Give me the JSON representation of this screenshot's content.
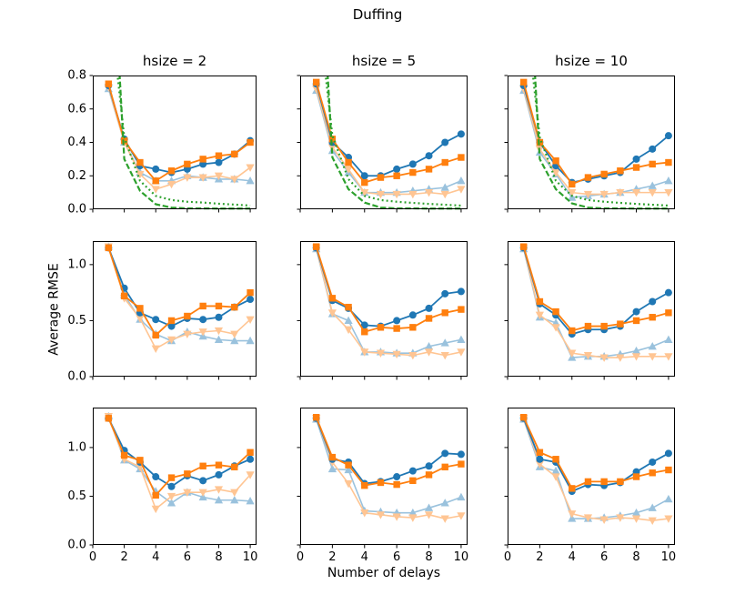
{
  "figure": {
    "title": "Duffing",
    "xlabel": "Number of delays",
    "ylabel": "Average RMSE"
  },
  "style": {
    "blue": "#1f77b4",
    "orange": "#ff7f0e",
    "light_blue": "#9ac2dd",
    "light_orange": "#ffc593",
    "green": "#2ca02c",
    "spine": "#000000"
  },
  "series_defs": [
    {
      "name": "blue-circle",
      "color": "#1f77b4",
      "marker": "circle",
      "line": "solid"
    },
    {
      "name": "orange-square",
      "color": "#ff7f0e",
      "marker": "square",
      "line": "solid"
    },
    {
      "name": "light-blue-triangle-up",
      "color": "#9ac2dd",
      "marker": "triangle-up",
      "line": "solid"
    },
    {
      "name": "light-orange-triangle-down",
      "color": "#ffc593",
      "marker": "triangle-down",
      "line": "solid"
    },
    {
      "name": "green-dashed",
      "color": "#2ca02c",
      "marker": null,
      "line": "dashed"
    },
    {
      "name": "green-dotted",
      "color": "#2ca02c",
      "marker": null,
      "line": "dotted"
    }
  ],
  "chart_data": [
    {
      "type": "line",
      "title": "hsize = 2",
      "x": [
        1,
        2,
        3,
        4,
        5,
        6,
        7,
        8,
        9,
        10
      ],
      "xlim": [
        0,
        10.4
      ],
      "ylim": [
        0,
        0.8
      ],
      "xticks": [
        0,
        2,
        4,
        6,
        8,
        10
      ],
      "xticklabels": null,
      "yticks": [
        0,
        0.2,
        0.4,
        0.6,
        0.8
      ],
      "yticklabels": [
        "0.0",
        "0.2",
        "0.4",
        "0.6",
        "0.8"
      ],
      "series": [
        {
          "def": 2,
          "values": [
            0.72,
            0.4,
            0.22,
            0.17,
            0.17,
            0.2,
            0.19,
            0.18,
            0.18,
            0.17
          ]
        },
        {
          "def": 3,
          "values": [
            0.73,
            0.4,
            0.21,
            0.12,
            0.15,
            0.19,
            0.19,
            0.2,
            0.18,
            0.25
          ]
        },
        {
          "def": 0,
          "values": [
            0.74,
            0.42,
            0.26,
            0.24,
            0.22,
            0.24,
            0.27,
            0.28,
            0.33,
            0.41
          ]
        },
        {
          "def": 1,
          "values": [
            0.75,
            0.41,
            0.28,
            0.17,
            0.23,
            0.27,
            0.3,
            0.32,
            0.33,
            0.4
          ]
        },
        {
          "def": 4,
          "values": [
            2.0,
            0.3,
            0.11,
            0.03,
            0.01,
            0.005,
            0.005,
            0.004,
            0.004,
            0.004
          ]
        },
        {
          "def": 5,
          "values": [
            1.3,
            0.43,
            0.17,
            0.08,
            0.055,
            0.045,
            0.04,
            0.033,
            0.028,
            0.022
          ]
        }
      ]
    },
    {
      "type": "line",
      "title": "hsize = 5",
      "x": [
        1,
        2,
        3,
        4,
        5,
        6,
        7,
        8,
        9,
        10
      ],
      "xlim": [
        0,
        10.4
      ],
      "ylim": [
        0,
        0.8
      ],
      "xticks": [
        0,
        2,
        4,
        6,
        8,
        10
      ],
      "xticklabels": null,
      "yticks": [
        0,
        0.2,
        0.4,
        0.6,
        0.8
      ],
      "yticklabels": null,
      "series": [
        {
          "def": 2,
          "values": [
            0.71,
            0.35,
            0.22,
            0.1,
            0.1,
            0.1,
            0.11,
            0.12,
            0.13,
            0.17
          ]
        },
        {
          "def": 3,
          "values": [
            0.72,
            0.37,
            0.24,
            0.1,
            0.09,
            0.09,
            0.09,
            0.1,
            0.09,
            0.12
          ]
        },
        {
          "def": 0,
          "values": [
            0.75,
            0.4,
            0.31,
            0.2,
            0.2,
            0.24,
            0.27,
            0.32,
            0.4,
            0.45
          ]
        },
        {
          "def": 1,
          "values": [
            0.76,
            0.42,
            0.28,
            0.16,
            0.19,
            0.2,
            0.22,
            0.24,
            0.28,
            0.31
          ]
        },
        {
          "def": 4,
          "values": [
            2.0,
            0.31,
            0.12,
            0.04,
            0.01,
            0.005,
            0.005,
            0.004,
            0.004,
            0.004
          ]
        },
        {
          "def": 5,
          "values": [
            1.3,
            0.44,
            0.18,
            0.08,
            0.055,
            0.045,
            0.038,
            0.032,
            0.027,
            0.022
          ]
        }
      ]
    },
    {
      "type": "line",
      "title": "hsize = 10",
      "x": [
        1,
        2,
        3,
        4,
        5,
        6,
        7,
        8,
        9,
        10
      ],
      "xlim": [
        0,
        10.4
      ],
      "ylim": [
        0,
        0.8
      ],
      "xticks": [
        0,
        2,
        4,
        6,
        8,
        10
      ],
      "xticklabels": null,
      "yticks": [
        0,
        0.2,
        0.4,
        0.6,
        0.8
      ],
      "yticklabels": null,
      "series": [
        {
          "def": 2,
          "values": [
            0.71,
            0.34,
            0.21,
            0.07,
            0.08,
            0.09,
            0.1,
            0.12,
            0.14,
            0.17
          ]
        },
        {
          "def": 3,
          "values": [
            0.72,
            0.36,
            0.22,
            0.1,
            0.09,
            0.09,
            0.1,
            0.1,
            0.1,
            0.1
          ]
        },
        {
          "def": 0,
          "values": [
            0.74,
            0.4,
            0.26,
            0.16,
            0.18,
            0.2,
            0.22,
            0.3,
            0.36,
            0.44
          ]
        },
        {
          "def": 1,
          "values": [
            0.76,
            0.4,
            0.29,
            0.15,
            0.19,
            0.21,
            0.23,
            0.25,
            0.27,
            0.28
          ]
        },
        {
          "def": 4,
          "values": [
            2.0,
            0.3,
            0.12,
            0.035,
            0.01,
            0.005,
            0.005,
            0.004,
            0.004,
            0.004
          ]
        },
        {
          "def": 5,
          "values": [
            1.3,
            0.43,
            0.17,
            0.08,
            0.055,
            0.045,
            0.038,
            0.032,
            0.027,
            0.022
          ]
        }
      ]
    },
    {
      "type": "line",
      "title": "",
      "x": [
        1,
        2,
        3,
        4,
        5,
        6,
        7,
        8,
        9,
        10
      ],
      "xlim": [
        0,
        10.4
      ],
      "ylim": [
        0,
        1.21
      ],
      "xticks": [
        0,
        2,
        4,
        6,
        8,
        10
      ],
      "xticklabels": null,
      "yticks": [
        0,
        0.5,
        1.0
      ],
      "yticklabels": [
        "0.0",
        "0.5",
        "1.0"
      ],
      "series": [
        {
          "def": 2,
          "values": [
            1.16,
            0.73,
            0.51,
            0.38,
            0.32,
            0.4,
            0.36,
            0.33,
            0.32,
            0.32
          ]
        },
        {
          "def": 3,
          "values": [
            1.16,
            0.7,
            0.52,
            0.25,
            0.33,
            0.38,
            0.4,
            0.41,
            0.38,
            0.51
          ]
        },
        {
          "def": 0,
          "values": [
            1.15,
            0.79,
            0.57,
            0.51,
            0.45,
            0.52,
            0.51,
            0.53,
            0.62,
            0.69
          ]
        },
        {
          "def": 1,
          "values": [
            1.15,
            0.72,
            0.61,
            0.37,
            0.5,
            0.54,
            0.63,
            0.63,
            0.62,
            0.75
          ]
        }
      ]
    },
    {
      "type": "line",
      "title": "",
      "x": [
        1,
        2,
        3,
        4,
        5,
        6,
        7,
        8,
        9,
        10
      ],
      "xlim": [
        0,
        10.4
      ],
      "ylim": [
        0,
        1.21
      ],
      "xticks": [
        0,
        2,
        4,
        6,
        8,
        10
      ],
      "xticklabels": null,
      "yticks": [
        0,
        0.5,
        1.0
      ],
      "yticklabels": null,
      "series": [
        {
          "def": 2,
          "values": [
            1.14,
            0.56,
            0.5,
            0.22,
            0.22,
            0.21,
            0.21,
            0.27,
            0.3,
            0.33
          ]
        },
        {
          "def": 3,
          "values": [
            1.15,
            0.57,
            0.42,
            0.22,
            0.21,
            0.2,
            0.19,
            0.22,
            0.19,
            0.22
          ]
        },
        {
          "def": 0,
          "values": [
            1.15,
            0.68,
            0.61,
            0.46,
            0.45,
            0.5,
            0.55,
            0.61,
            0.74,
            0.76
          ]
        },
        {
          "def": 1,
          "values": [
            1.16,
            0.7,
            0.62,
            0.4,
            0.44,
            0.43,
            0.44,
            0.52,
            0.57,
            0.6
          ]
        }
      ]
    },
    {
      "type": "line",
      "title": "",
      "x": [
        1,
        2,
        3,
        4,
        5,
        6,
        7,
        8,
        9,
        10
      ],
      "xlim": [
        0,
        10.4
      ],
      "ylim": [
        0,
        1.21
      ],
      "xticks": [
        0,
        2,
        4,
        6,
        8,
        10
      ],
      "xticklabels": null,
      "yticks": [
        0,
        0.5,
        1.0
      ],
      "yticklabels": null,
      "series": [
        {
          "def": 2,
          "values": [
            1.14,
            0.53,
            0.48,
            0.17,
            0.18,
            0.18,
            0.2,
            0.23,
            0.27,
            0.33
          ]
        },
        {
          "def": 3,
          "values": [
            1.15,
            0.55,
            0.44,
            0.21,
            0.19,
            0.17,
            0.17,
            0.18,
            0.18,
            0.18
          ]
        },
        {
          "def": 0,
          "values": [
            1.15,
            0.65,
            0.55,
            0.38,
            0.42,
            0.42,
            0.45,
            0.58,
            0.67,
            0.75
          ]
        },
        {
          "def": 1,
          "values": [
            1.16,
            0.67,
            0.58,
            0.41,
            0.45,
            0.45,
            0.47,
            0.5,
            0.53,
            0.57
          ]
        }
      ]
    },
    {
      "type": "line",
      "title": "",
      "x": [
        1,
        2,
        3,
        4,
        5,
        6,
        7,
        8,
        9,
        10
      ],
      "xlim": [
        0,
        10.4
      ],
      "ylim": [
        0,
        1.41
      ],
      "xticks": [
        0,
        2,
        4,
        6,
        8,
        10
      ],
      "xticklabels": [
        "0",
        "2",
        "4",
        "6",
        "8",
        "10"
      ],
      "yticks": [
        0,
        0.5,
        1.0
      ],
      "yticklabels": [
        "0.0",
        "0.5",
        "1.0"
      ],
      "series": [
        {
          "def": 2,
          "values": [
            1.32,
            0.87,
            0.78,
            0.55,
            0.43,
            0.54,
            0.49,
            0.46,
            0.46,
            0.45
          ]
        },
        {
          "def": 3,
          "values": [
            1.32,
            0.88,
            0.8,
            0.37,
            0.5,
            0.54,
            0.54,
            0.57,
            0.54,
            0.72
          ]
        },
        {
          "def": 0,
          "values": [
            1.3,
            0.97,
            0.85,
            0.7,
            0.6,
            0.71,
            0.66,
            0.72,
            0.81,
            0.88
          ]
        },
        {
          "def": 1,
          "values": [
            1.3,
            0.92,
            0.87,
            0.51,
            0.69,
            0.73,
            0.81,
            0.82,
            0.8,
            0.95
          ]
        }
      ]
    },
    {
      "type": "line",
      "title": "",
      "x": [
        1,
        2,
        3,
        4,
        5,
        6,
        7,
        8,
        9,
        10
      ],
      "xlim": [
        0,
        10.4
      ],
      "ylim": [
        0,
        1.41
      ],
      "xticks": [
        0,
        2,
        4,
        6,
        8,
        10
      ],
      "xticklabels": [
        "0",
        "2",
        "4",
        "6",
        "8",
        "10"
      ],
      "yticks": [
        0,
        0.5,
        1.0
      ],
      "yticklabels": null,
      "series": [
        {
          "def": 2,
          "values": [
            1.29,
            0.78,
            0.77,
            0.35,
            0.34,
            0.33,
            0.33,
            0.38,
            0.43,
            0.49
          ]
        },
        {
          "def": 3,
          "values": [
            1.3,
            0.85,
            0.63,
            0.33,
            0.31,
            0.29,
            0.28,
            0.31,
            0.27,
            0.3
          ]
        },
        {
          "def": 0,
          "values": [
            1.3,
            0.88,
            0.85,
            0.63,
            0.65,
            0.7,
            0.76,
            0.81,
            0.94,
            0.93
          ]
        },
        {
          "def": 1,
          "values": [
            1.31,
            0.9,
            0.82,
            0.61,
            0.64,
            0.62,
            0.66,
            0.72,
            0.8,
            0.83
          ]
        }
      ]
    },
    {
      "type": "line",
      "title": "",
      "x": [
        1,
        2,
        3,
        4,
        5,
        6,
        7,
        8,
        9,
        10
      ],
      "xlim": [
        0,
        10.4
      ],
      "ylim": [
        0,
        1.41
      ],
      "xticks": [
        0,
        2,
        4,
        6,
        8,
        10
      ],
      "xticklabels": [
        "0",
        "2",
        "4",
        "6",
        "8",
        "10"
      ],
      "yticks": [
        0,
        0.5,
        1.0
      ],
      "yticklabels": null,
      "series": [
        {
          "def": 2,
          "values": [
            1.29,
            0.8,
            0.76,
            0.27,
            0.27,
            0.28,
            0.3,
            0.33,
            0.38,
            0.47
          ]
        },
        {
          "def": 3,
          "values": [
            1.3,
            0.83,
            0.7,
            0.32,
            0.28,
            0.26,
            0.28,
            0.27,
            0.25,
            0.27
          ]
        },
        {
          "def": 0,
          "values": [
            1.3,
            0.88,
            0.85,
            0.55,
            0.62,
            0.61,
            0.64,
            0.75,
            0.85,
            0.94
          ]
        },
        {
          "def": 1,
          "values": [
            1.31,
            0.95,
            0.88,
            0.58,
            0.65,
            0.65,
            0.65,
            0.7,
            0.74,
            0.77
          ]
        }
      ]
    }
  ]
}
